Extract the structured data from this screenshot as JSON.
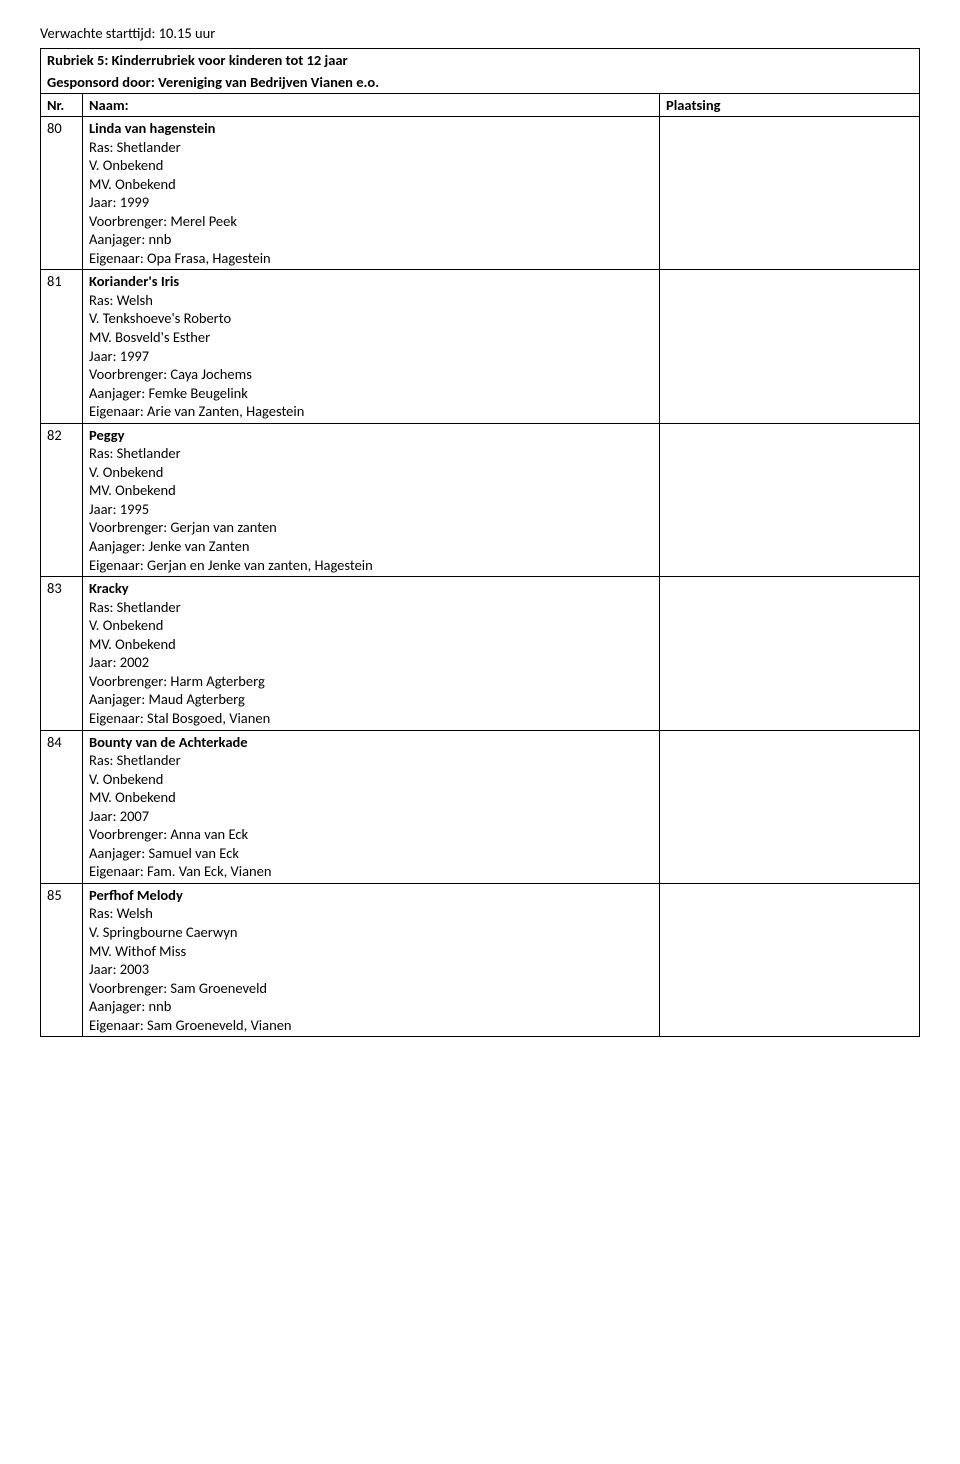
{
  "start_time_label": "Verwachte starttijd: 10.15 uur",
  "rubriek": {
    "title": "Rubriek 5: Kinderrubriek voor kinderen tot 12 jaar",
    "sponsor": "Gesponsord door: Vereniging van Bedrijven Vianen e.o."
  },
  "columns": {
    "nr": "Nr.",
    "naam": "Naam:",
    "plaatsing": "Plaatsing"
  },
  "labels": {
    "ras": "Ras:",
    "vader": "V.",
    "moeder": "MV.",
    "jaar": "Jaar:",
    "voorbrenger": "Voorbrenger:",
    "aanjager": "Aanjager:",
    "eigenaar": "Eigenaar:"
  },
  "entries": [
    {
      "nr": "80",
      "name": "Linda van hagenstein",
      "ras": "Shetlander",
      "vader": "Onbekend",
      "moeder": "Onbekend",
      "jaar": "1999",
      "voorbrenger": "Merel Peek",
      "aanjager": "nnb",
      "eigenaar": "Opa Frasa, Hagestein"
    },
    {
      "nr": "81",
      "name": "Koriander's Iris",
      "ras": "Welsh",
      "vader": "Tenkshoeve's Roberto",
      "moeder": "Bosveld's Esther",
      "jaar": "1997",
      "voorbrenger": "Caya Jochems",
      "aanjager": "Femke Beugelink",
      "eigenaar": "Arie van Zanten, Hagestein"
    },
    {
      "nr": "82",
      "name": "Peggy",
      "ras": "Shetlander",
      "vader": "Onbekend",
      "moeder": "Onbekend",
      "jaar": "1995",
      "voorbrenger": "Gerjan van zanten",
      "aanjager": "Jenke van Zanten",
      "eigenaar": "Gerjan en Jenke van zanten, Hagestein"
    },
    {
      "nr": "83",
      "name": "Kracky",
      "ras": "Shetlander",
      "vader": "Onbekend",
      "moeder": "Onbekend",
      "jaar": "2002",
      "voorbrenger": "Harm Agterberg",
      "aanjager": "Maud Agterberg",
      "eigenaar": "Stal Bosgoed, Vianen"
    },
    {
      "nr": "84",
      "name": "Bounty van de Achterkade",
      "ras": "Shetlander",
      "vader": "Onbekend",
      "moeder": "Onbekend",
      "jaar": "2007",
      "voorbrenger": "Anna van Eck",
      "aanjager": "Samuel van Eck",
      "eigenaar": "Fam. Van Eck, Vianen"
    },
    {
      "nr": "85",
      "name": "Perfhof Melody",
      "ras": "Welsh",
      "vader": "Springbourne Caerwyn",
      "moeder": "Withof Miss",
      "jaar": "2003",
      "voorbrenger": "Sam Groeneveld",
      "aanjager": "nnb",
      "eigenaar": "Sam Groeneveld, Vianen"
    }
  ]
}
